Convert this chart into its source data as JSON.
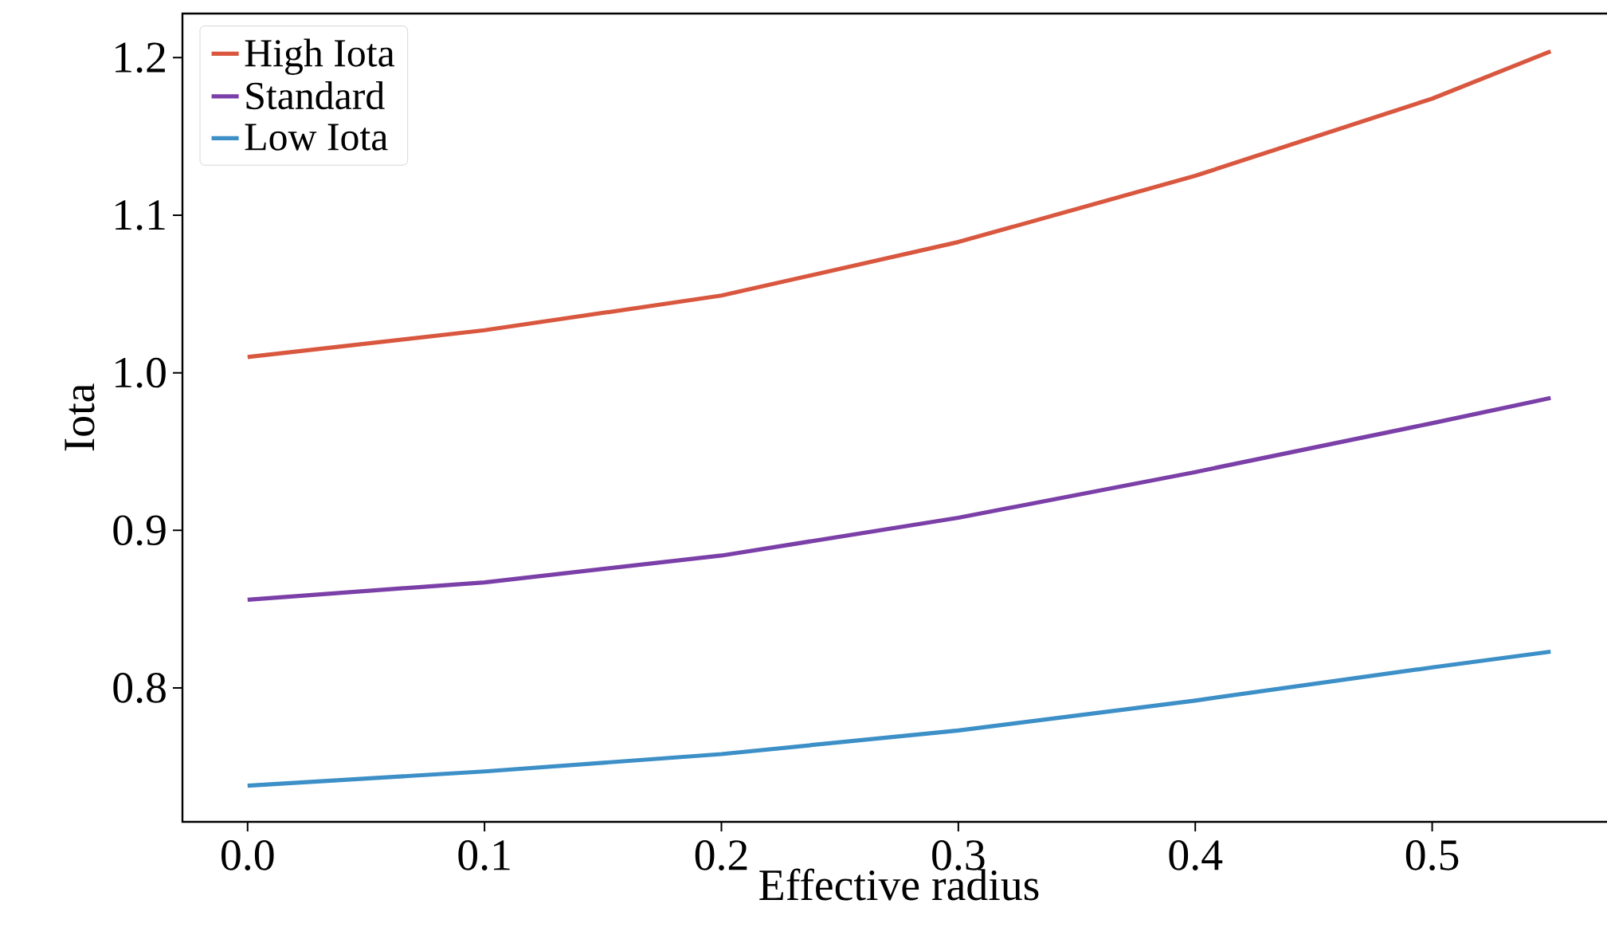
{
  "chart_data": {
    "type": "line",
    "xlabel": "Effective radius",
    "ylabel": "Iota",
    "x": [
      0,
      0.1,
      0.2,
      0.3,
      0.4,
      0.5,
      0.55
    ],
    "series": [
      {
        "name": "High Iota",
        "color": "#d9573f",
        "values": [
          1.01,
          1.027,
          1.049,
          1.083,
          1.125,
          1.174,
          1.204
        ]
      },
      {
        "name": "Standard",
        "color": "#7b3fa8",
        "values": [
          0.856,
          0.867,
          0.884,
          0.908,
          0.937,
          0.968,
          0.984
        ]
      },
      {
        "name": "Low Iota",
        "color": "#3c8fc7",
        "values": [
          0.738,
          0.747,
          0.758,
          0.773,
          0.792,
          0.813,
          0.823
        ]
      }
    ],
    "xlim": [
      -0.0275,
      0.5775
    ],
    "ylim": [
      0.715,
      1.228
    ],
    "xticks": [
      {
        "value": 0,
        "label": "0.0"
      },
      0.1,
      0.2,
      0.3,
      0.4,
      0.5
    ],
    "yticks": [
      0.8,
      0.9,
      {
        "value": 1.0,
        "label": "1.0"
      },
      1.1,
      1.2
    ],
    "legend": "top left",
    "grid": false,
    "marker": "none",
    "line_style": "solid"
  }
}
